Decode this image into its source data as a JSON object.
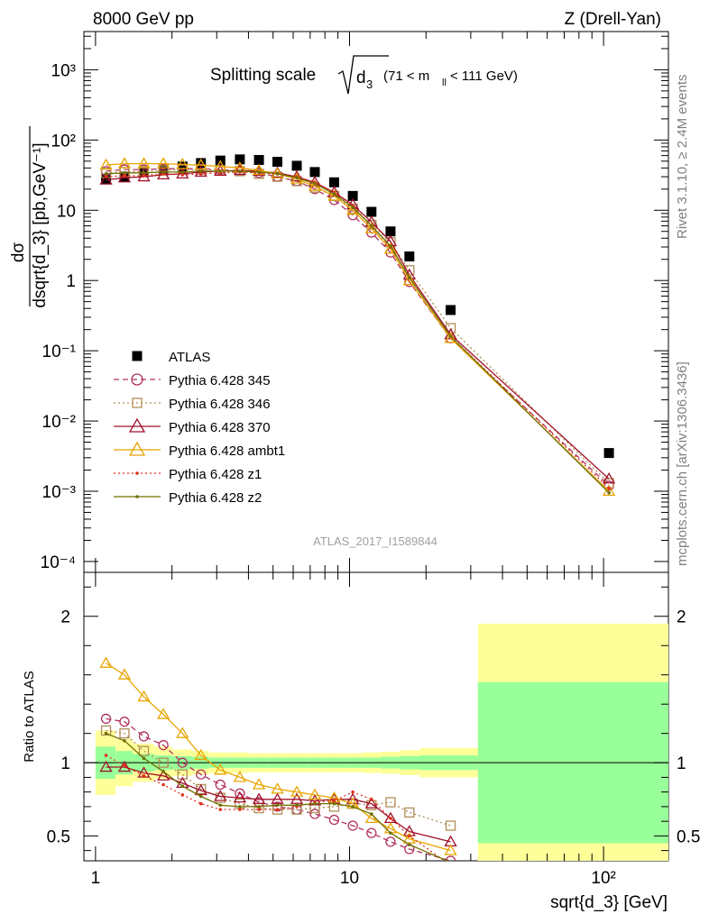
{
  "header": {
    "left": "8000 GeV pp",
    "right": "Z (Drell-Yan)"
  },
  "side": {
    "rivet": "Rivet 3.1.10, ≥ 2.4M events",
    "mcplots": "mcplots.cern.ch [arXiv:1306.3436]"
  },
  "plot_title": {
    "main": "Splitting scale",
    "sqrt_var": "d",
    "sqrt_sub": "3",
    "range_a": "(71 < m",
    "range_sub": "ll",
    "range_b": " < 111 GeV)"
  },
  "analysis_label": "ATLAS_2017_I1589844",
  "colors": {
    "ATLAS": "#000000",
    "p345": "#b03060",
    "p346": "#b08d57",
    "p370": "#a0102a",
    "ambt1": "#e8a400",
    "z1": "#e0301e",
    "z2": "#707000",
    "band_outer": "#ffff99",
    "band_inner": "#99ff99"
  },
  "chart_data": [
    {
      "type": "scatter",
      "title": "Splitting scale √d3 (71 < m_ll < 111 GeV)",
      "ylabel": "dσ/dsqrt{d_3} [pb,GeV⁻¹]",
      "xlabel": "sqrt{d_3} [GeV]",
      "xscale": "log",
      "yscale": "log",
      "xlim": [
        0.9,
        180
      ],
      "ylim": [
        7e-05,
        3500
      ],
      "yticks": [
        "10⁻⁴",
        "10⁻³",
        "10⁻²",
        "10⁻¹",
        "1",
        "10",
        "10²",
        "10³"
      ],
      "legend_position": "middle-left",
      "x": [
        1.1,
        1.3,
        1.55,
        1.85,
        2.2,
        2.6,
        3.1,
        3.7,
        4.4,
        5.2,
        6.2,
        7.3,
        8.7,
        10.3,
        12.2,
        14.5,
        17.2,
        25,
        105
      ],
      "series": [
        {
          "name": "ATLAS",
          "style": "square-filled",
          "color": "#000000",
          "values": [
            28,
            30,
            35,
            38,
            42,
            47,
            51,
            53,
            52,
            49,
            43,
            35,
            25,
            16,
            9.5,
            5,
            2.2,
            0.38,
            0.0035
          ]
        },
        {
          "name": "Pythia 6.428 345",
          "style": "circle-dashed",
          "color": "#b03060",
          "values": [
            36,
            38,
            38,
            39,
            39,
            39,
            38,
            36,
            34,
            30,
            26,
            20,
            14,
            8.5,
            4.8,
            2.5,
            0.95,
            0.15,
            0.0012
          ]
        },
        {
          "name": "Pythia 6.428 346",
          "style": "square-dotted",
          "color": "#b08d57",
          "values": [
            34,
            35,
            36,
            37,
            38,
            38,
            37,
            36,
            33,
            30,
            26,
            21,
            16,
            10.5,
            6.2,
            3.5,
            1.4,
            0.21,
            0.0013
          ]
        },
        {
          "name": "Pythia 6.428 370",
          "style": "triangle-solid",
          "color": "#a0102a",
          "values": [
            27,
            29,
            30,
            32,
            33,
            35,
            36,
            37,
            36,
            34,
            30,
            25,
            18,
            12,
            6.8,
            3.6,
            1.2,
            0.17,
            0.0015
          ]
        },
        {
          "name": "Pythia 6.428 ambt1",
          "style": "triangle-solid",
          "color": "#e8a400",
          "values": [
            44,
            46,
            46,
            46,
            45,
            44,
            42,
            40,
            37,
            33,
            28,
            22,
            16,
            10,
            5.5,
            2.8,
            1.0,
            0.15,
            0.001
          ]
        },
        {
          "name": "Pythia 6.428 z1",
          "style": "dot-dotted",
          "color": "#e0301e",
          "values": [
            30,
            31,
            31,
            33,
            32,
            33,
            34,
            35,
            34,
            33,
            30,
            25,
            18,
            11.5,
            6,
            3,
            1.1,
            0.16,
            0.0011
          ]
        },
        {
          "name": "Pythia 6.428 z2",
          "style": "dot-solid",
          "color": "#707000",
          "values": [
            33,
            34,
            34,
            35,
            35,
            36,
            36,
            36,
            35,
            33,
            29,
            24,
            17,
            11,
            6,
            3.1,
            1.1,
            0.16,
            0.00095
          ]
        }
      ]
    },
    {
      "type": "line",
      "ylabel": "Ratio to ATLAS",
      "xlabel": "sqrt{d_3} [GeV]",
      "xscale": "log",
      "xlim": [
        0.9,
        180
      ],
      "ylim": [
        0.33,
        2.3
      ],
      "yticks": [
        "0.5",
        "1",
        "2"
      ],
      "xticks": [
        "1",
        "10",
        "10²"
      ],
      "x": [
        1.1,
        1.3,
        1.55,
        1.85,
        2.2,
        2.6,
        3.1,
        3.7,
        4.4,
        5.2,
        6.2,
        7.3,
        8.7,
        10.3,
        12.2,
        14.5,
        17.2,
        25
      ],
      "bands": {
        "edges": [
          1.0,
          1.2,
          1.4,
          1.7,
          2.0,
          2.4,
          2.8,
          3.4,
          4.0,
          4.8,
          5.6,
          6.8,
          8.0,
          9.5,
          11.2,
          13.3,
          15.8,
          19.0,
          32,
          180
        ],
        "outer_half_width": [
          0.22,
          0.16,
          0.13,
          0.11,
          0.09,
          0.08,
          0.07,
          0.07,
          0.065,
          0.065,
          0.065,
          0.065,
          0.065,
          0.065,
          0.07,
          0.075,
          0.085,
          0.1,
          0.95
        ],
        "inner_half_width": [
          0.11,
          0.08,
          0.06,
          0.05,
          0.045,
          0.04,
          0.035,
          0.035,
          0.035,
          0.035,
          0.035,
          0.035,
          0.035,
          0.035,
          0.035,
          0.04,
          0.045,
          0.05,
          0.55
        ]
      },
      "series": [
        {
          "name": "Pythia 6.428 345",
          "style": "circle-dashed",
          "color": "#b03060",
          "values": [
            1.3,
            1.28,
            1.18,
            1.12,
            1.0,
            0.92,
            0.85,
            0.79,
            0.73,
            0.7,
            0.68,
            0.65,
            0.61,
            0.57,
            0.52,
            0.46,
            0.41,
            0.33
          ]
        },
        {
          "name": "Pythia 6.428 346",
          "style": "square-dotted",
          "color": "#b08d57",
          "values": [
            1.22,
            1.2,
            1.08,
            1.0,
            0.92,
            0.82,
            0.76,
            0.72,
            0.69,
            0.68,
            0.68,
            0.69,
            0.7,
            0.72,
            0.71,
            0.73,
            0.66,
            0.57
          ]
        },
        {
          "name": "Pythia 6.428 370",
          "style": "triangle-solid",
          "color": "#a0102a",
          "values": [
            0.97,
            0.97,
            0.93,
            0.91,
            0.86,
            0.81,
            0.77,
            0.76,
            0.75,
            0.75,
            0.75,
            0.74,
            0.75,
            0.75,
            0.72,
            0.62,
            0.53,
            0.46
          ]
        },
        {
          "name": "Pythia 6.428 ambt1",
          "style": "triangle-solid",
          "color": "#e8a400",
          "values": [
            1.68,
            1.6,
            1.45,
            1.33,
            1.2,
            1.05,
            0.95,
            0.9,
            0.85,
            0.82,
            0.8,
            0.78,
            0.76,
            0.72,
            0.62,
            0.55,
            0.48,
            0.4
          ]
        },
        {
          "name": "Pythia 6.428 z1",
          "style": "dot-dotted",
          "color": "#e0301e",
          "values": [
            1.05,
            0.98,
            0.91,
            0.85,
            0.78,
            0.72,
            0.68,
            0.68,
            0.68,
            0.68,
            0.7,
            0.73,
            0.74,
            0.8,
            0.75,
            0.62,
            0.5,
            0.3
          ]
        },
        {
          "name": "Pythia 6.428 z2",
          "style": "dot-solid",
          "color": "#707000",
          "values": [
            1.2,
            1.15,
            1.03,
            0.94,
            0.84,
            0.77,
            0.71,
            0.7,
            0.7,
            0.71,
            0.71,
            0.72,
            0.72,
            0.7,
            0.65,
            0.52,
            0.44,
            0.32
          ]
        }
      ]
    }
  ]
}
